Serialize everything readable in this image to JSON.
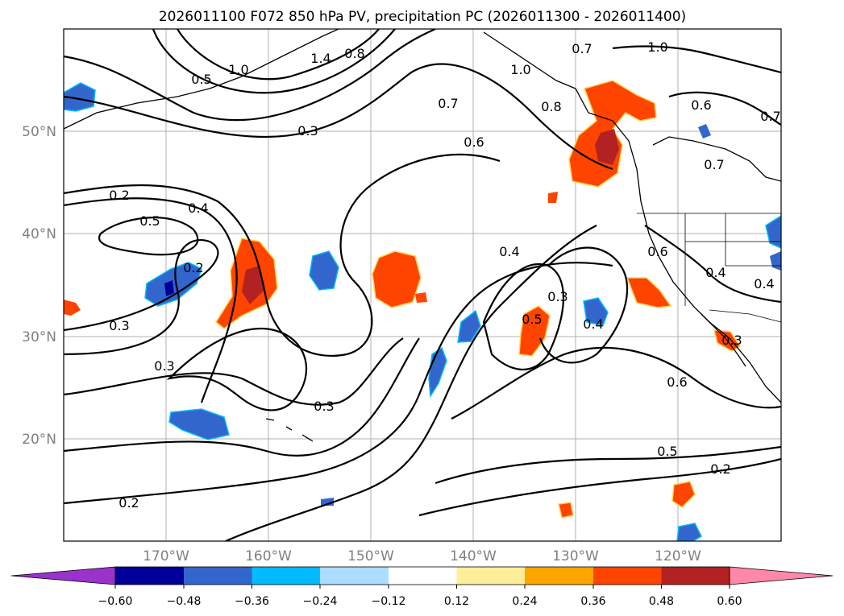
{
  "title": "2026011100 F072 850 hPa PV, precipitation PC (2026011300 - 2026011400)",
  "latitude_labels": [
    "50°N",
    "40°N",
    "30°N",
    "20°N"
  ],
  "longitude_labels": [
    "170°W",
    "160°W",
    "150°W",
    "140°W",
    "130°W",
    "120°W"
  ],
  "colorbar": {
    "tick_labels": [
      "−0.60",
      "−0.48",
      "−0.36",
      "−0.24",
      "−0.12",
      "0.12",
      "0.24",
      "0.36",
      "0.48",
      "0.60"
    ],
    "colors": [
      "#9933cc",
      "#000099",
      "#3366cc",
      "#00bbff",
      "#aaddff",
      "#ffffff",
      "#ffee99",
      "#ffa500",
      "#ff4400",
      "#b22222",
      "#ff88aa"
    ]
  },
  "contour_labels": [
    "1.0",
    "0.5",
    "1.4",
    "0.8",
    "0.3",
    "0.7",
    "0.6",
    "0.8",
    "1.0",
    "0.7",
    "1.0",
    "0.6",
    "0.7",
    "0.2",
    "0.4",
    "0.5",
    "0.3",
    "0.2",
    "0.3",
    "0.3",
    "0.4",
    "0.3",
    "0.5",
    "0.4",
    "0.6",
    "0.5",
    "0.2",
    "0.2",
    "0.6",
    "0.4",
    "0.4",
    "0.7",
    "0.3"
  ]
}
